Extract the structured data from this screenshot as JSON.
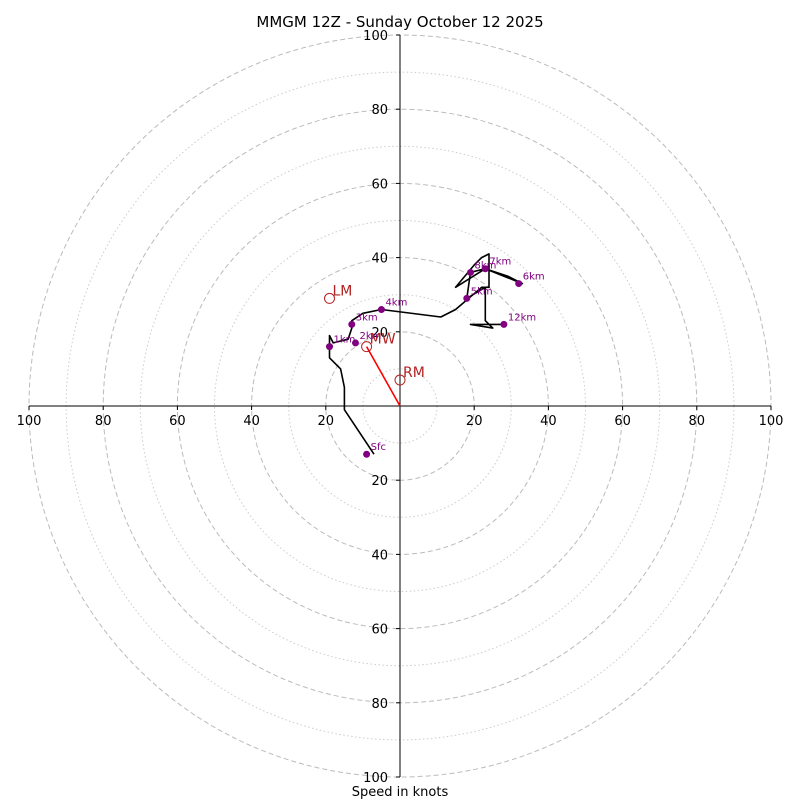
{
  "chart_data": {
    "type": "hodograph",
    "title": "MMGM 12Z - Sunday October 12 2025",
    "xlabel": "Speed in knots",
    "range": [
      -100,
      100
    ],
    "ring_major": [
      20,
      40,
      60,
      80,
      100
    ],
    "ring_minor": [
      10,
      30,
      50,
      70,
      90
    ],
    "tick_values": [
      20,
      40,
      60,
      80,
      100
    ],
    "colors": {
      "trace": "#000000",
      "height_marker": "#800080",
      "motion": "#b22222",
      "shear_vector": "#ff0000",
      "ring": "#bbbbbb"
    },
    "trace": [
      [
        -7,
        -13
      ],
      [
        -15,
        -1
      ],
      [
        -15,
        5
      ],
      [
        -16,
        10
      ],
      [
        -19,
        13
      ],
      [
        -19,
        19
      ],
      [
        -18,
        17
      ],
      [
        -14,
        18
      ],
      [
        -13,
        21
      ],
      [
        -13,
        23
      ],
      [
        -10,
        25
      ],
      [
        -5,
        26
      ],
      [
        11,
        24
      ],
      [
        15,
        26
      ],
      [
        22,
        32
      ],
      [
        24,
        32
      ],
      [
        24,
        36
      ],
      [
        24,
        41
      ],
      [
        22,
        40
      ],
      [
        20,
        38
      ],
      [
        15,
        32
      ],
      [
        23,
        37
      ],
      [
        33,
        33
      ],
      [
        29,
        35
      ],
      [
        23,
        37
      ],
      [
        19,
        36
      ],
      [
        18,
        29
      ],
      [
        23,
        32
      ],
      [
        23,
        23
      ],
      [
        25,
        21
      ],
      [
        19,
        22
      ],
      [
        28,
        22
      ]
    ],
    "height_markers": [
      {
        "label": "Sfc",
        "u": -9,
        "v": -13
      },
      {
        "label": "1km",
        "u": -19,
        "v": 16
      },
      {
        "label": "2km",
        "u": -12,
        "v": 17
      },
      {
        "label": "3km",
        "u": -13,
        "v": 22
      },
      {
        "label": "4km",
        "u": -5,
        "v": 26
      },
      {
        "label": "5km",
        "u": 18,
        "v": 29
      },
      {
        "label": "6km",
        "u": 32,
        "v": 33
      },
      {
        "label": "7km",
        "u": 23,
        "v": 37
      },
      {
        "label": "8km",
        "u": 19,
        "v": 36
      },
      {
        "label": "12km",
        "u": 28,
        "v": 22
      }
    ],
    "storm_motion": [
      {
        "label": "LM",
        "u": -19,
        "v": 29
      },
      {
        "label": "RM",
        "u": 0,
        "v": 7
      },
      {
        "label": "MW",
        "u": -9,
        "v": 16
      }
    ],
    "shear_vector": {
      "from": [
        0,
        0
      ],
      "to": [
        -9,
        16
      ]
    }
  }
}
